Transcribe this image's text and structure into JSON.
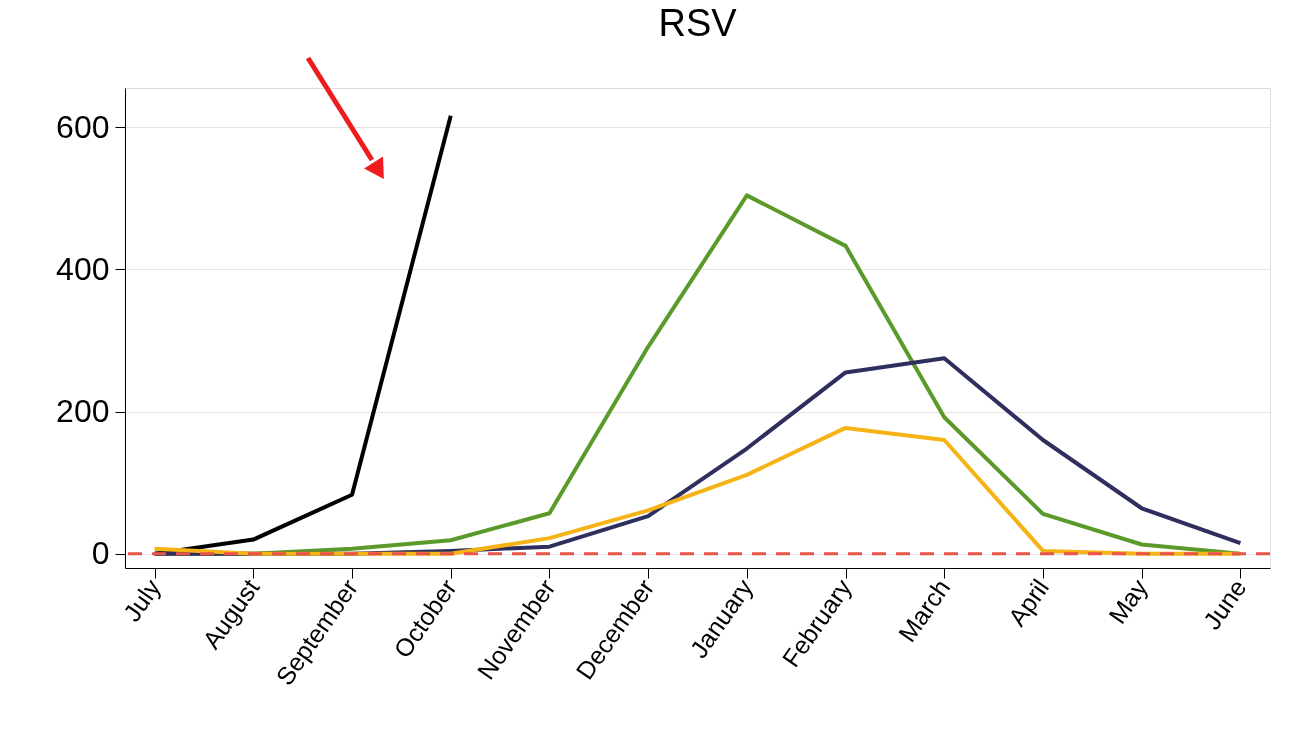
{
  "chart_data": {
    "type": "line",
    "title": "RSV",
    "categories": [
      "July",
      "August",
      "September",
      "October",
      "November",
      "December",
      "January",
      "February",
      "March",
      "April",
      "May",
      "June"
    ],
    "series": [
      {
        "color": "#000000",
        "values": [
          0,
          20,
          83,
          616,
          null,
          null,
          null,
          null,
          null,
          null,
          null,
          null
        ]
      },
      {
        "color": "#5a9a2a",
        "values": [
          0,
          0,
          7,
          19,
          57,
          291,
          504,
          433,
          192,
          56,
          13,
          0
        ]
      },
      {
        "color": "#2f2f5f",
        "values": [
          0,
          0,
          0,
          4,
          10,
          53,
          148,
          255,
          275,
          160,
          64,
          15
        ]
      },
      {
        "color": "#f5b316",
        "values": [
          7,
          0,
          0,
          0,
          22,
          61,
          111,
          177,
          160,
          4,
          0,
          0
        ]
      }
    ],
    "ylim": [
      -20,
      655
    ],
    "yticks": [
      0,
      200,
      400,
      600
    ],
    "grid": "y",
    "legend": false,
    "marker": "none",
    "line_style": "solid",
    "ref_lines": [
      {
        "axis": "y",
        "value": 0,
        "color": "#e8534a",
        "line_style": "dashed"
      }
    ]
  }
}
